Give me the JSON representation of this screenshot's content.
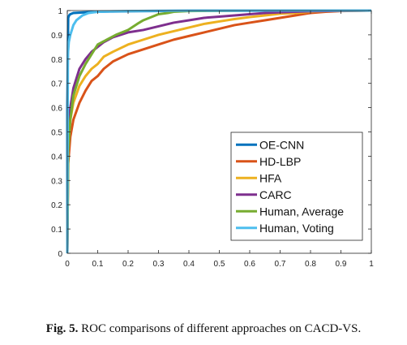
{
  "caption": {
    "prefix": "Fig. 5.",
    "text": " ROC comparisons of different approaches on CACD-VS."
  },
  "chart_data": {
    "type": "line",
    "title": "",
    "xlabel": "",
    "ylabel": "",
    "xlim": [
      0,
      1
    ],
    "ylim": [
      0,
      1
    ],
    "xticks": [
      "0",
      "0.1",
      "0.2",
      "0.3",
      "0.4",
      "0.5",
      "0.6",
      "0.7",
      "0.8",
      "0.9",
      "1"
    ],
    "yticks": [
      "0",
      "0.1",
      "0.2",
      "0.3",
      "0.4",
      "0.5",
      "0.6",
      "0.7",
      "0.8",
      "0.9",
      "1"
    ],
    "grid": false,
    "legend": "bottom-right",
    "series": [
      {
        "name": "OE-CNN",
        "color": "#0072BD",
        "x": [
          0,
          0,
          0.003,
          0.006,
          0.01,
          0.02,
          0.05,
          0.1,
          0.2,
          0.4,
          1
        ],
        "y": [
          0,
          0.6,
          0.97,
          0.98,
          0.985,
          0.99,
          0.992,
          0.995,
          0.997,
          0.999,
          1
        ]
      },
      {
        "name": "HD-LBP",
        "color": "#D95319",
        "x": [
          0,
          0.003,
          0.01,
          0.02,
          0.04,
          0.06,
          0.08,
          0.1,
          0.12,
          0.15,
          0.2,
          0.25,
          0.3,
          0.35,
          0.4,
          0.45,
          0.5,
          0.55,
          0.6,
          0.65,
          0.7,
          0.75,
          0.8,
          0.85,
          0.9,
          1
        ],
        "y": [
          0,
          0.37,
          0.48,
          0.55,
          0.62,
          0.67,
          0.71,
          0.73,
          0.76,
          0.79,
          0.82,
          0.84,
          0.86,
          0.88,
          0.895,
          0.91,
          0.925,
          0.94,
          0.95,
          0.96,
          0.97,
          0.98,
          0.99,
          0.995,
          0.998,
          1
        ]
      },
      {
        "name": "HFA",
        "color": "#EDB120",
        "x": [
          0,
          0.003,
          0.01,
          0.02,
          0.04,
          0.06,
          0.08,
          0.1,
          0.12,
          0.15,
          0.2,
          0.25,
          0.3,
          0.35,
          0.4,
          0.45,
          0.5,
          0.55,
          0.6,
          0.65,
          0.7,
          0.75,
          0.8,
          0.85,
          0.9,
          1
        ],
        "y": [
          0,
          0.45,
          0.55,
          0.62,
          0.69,
          0.73,
          0.76,
          0.78,
          0.81,
          0.83,
          0.86,
          0.88,
          0.9,
          0.915,
          0.93,
          0.945,
          0.955,
          0.965,
          0.973,
          0.98,
          0.987,
          0.99,
          0.995,
          0.998,
          0.999,
          1
        ]
      },
      {
        "name": "CARC",
        "color": "#7E2F8E",
        "x": [
          0,
          0.003,
          0.01,
          0.02,
          0.04,
          0.06,
          0.08,
          0.1,
          0.12,
          0.15,
          0.2,
          0.25,
          0.3,
          0.35,
          0.4,
          0.45,
          0.5,
          0.55,
          0.6,
          0.65,
          0.7,
          0.8,
          0.9,
          1
        ],
        "y": [
          0,
          0.48,
          0.6,
          0.68,
          0.76,
          0.8,
          0.83,
          0.85,
          0.87,
          0.89,
          0.91,
          0.92,
          0.935,
          0.95,
          0.96,
          0.97,
          0.975,
          0.98,
          0.985,
          0.99,
          0.993,
          0.997,
          0.999,
          1
        ]
      },
      {
        "name": "Human, Average",
        "color": "#77AC30",
        "x": [
          0,
          0.003,
          0.01,
          0.02,
          0.04,
          0.06,
          0.08,
          0.1,
          0.13,
          0.16,
          0.2,
          0.23,
          0.25,
          0.28,
          0.3,
          0.33,
          0.35,
          0.4,
          0.5,
          0.6,
          1
        ],
        "y": [
          0,
          0.42,
          0.55,
          0.65,
          0.73,
          0.78,
          0.82,
          0.86,
          0.88,
          0.9,
          0.92,
          0.945,
          0.96,
          0.975,
          0.985,
          0.99,
          0.995,
          0.998,
          0.999,
          1,
          1
        ]
      },
      {
        "name": "Human, Voting",
        "color": "#4DBEEE",
        "x": [
          0,
          0.002,
          0.005,
          0.01,
          0.015,
          0.02,
          0.03,
          0.04,
          0.05,
          0.07,
          0.1,
          0.15,
          0.2,
          0.3,
          0.5,
          1
        ],
        "y": [
          0,
          0.82,
          0.87,
          0.9,
          0.92,
          0.94,
          0.96,
          0.97,
          0.98,
          0.99,
          0.995,
          0.997,
          0.998,
          0.999,
          1,
          1
        ]
      }
    ]
  }
}
